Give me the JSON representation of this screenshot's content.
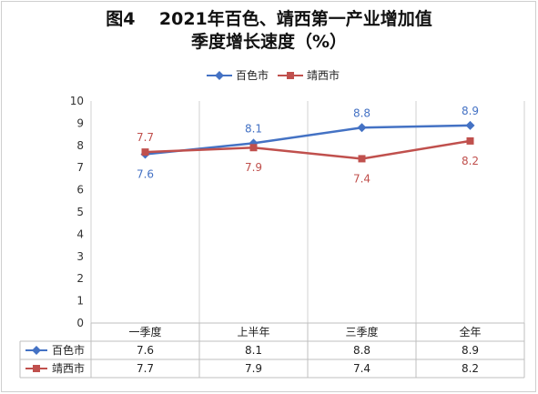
{
  "title": {
    "line1": "图4    2021年百色、靖西第一产业增加值",
    "line2": "季度增长速度（%）"
  },
  "chart_data": {
    "type": "line",
    "categories": [
      "一季度",
      "上半年",
      "三季度",
      "全年"
    ],
    "series": [
      {
        "name": "百色市",
        "values": [
          7.6,
          8.1,
          8.8,
          8.9
        ],
        "color": "#4472C4",
        "marker": "diamond",
        "label_position": "mixed"
      },
      {
        "name": "靖西市",
        "values": [
          7.7,
          7.9,
          7.4,
          8.2
        ],
        "color": "#C0504D",
        "marker": "square",
        "label_position": "mixed"
      }
    ],
    "ylim": [
      0,
      10
    ],
    "yticks": [
      0,
      1,
      2,
      3,
      4,
      5,
      6,
      7,
      8,
      9,
      10
    ],
    "gridlines": false,
    "legend": "top",
    "data_table": true
  }
}
